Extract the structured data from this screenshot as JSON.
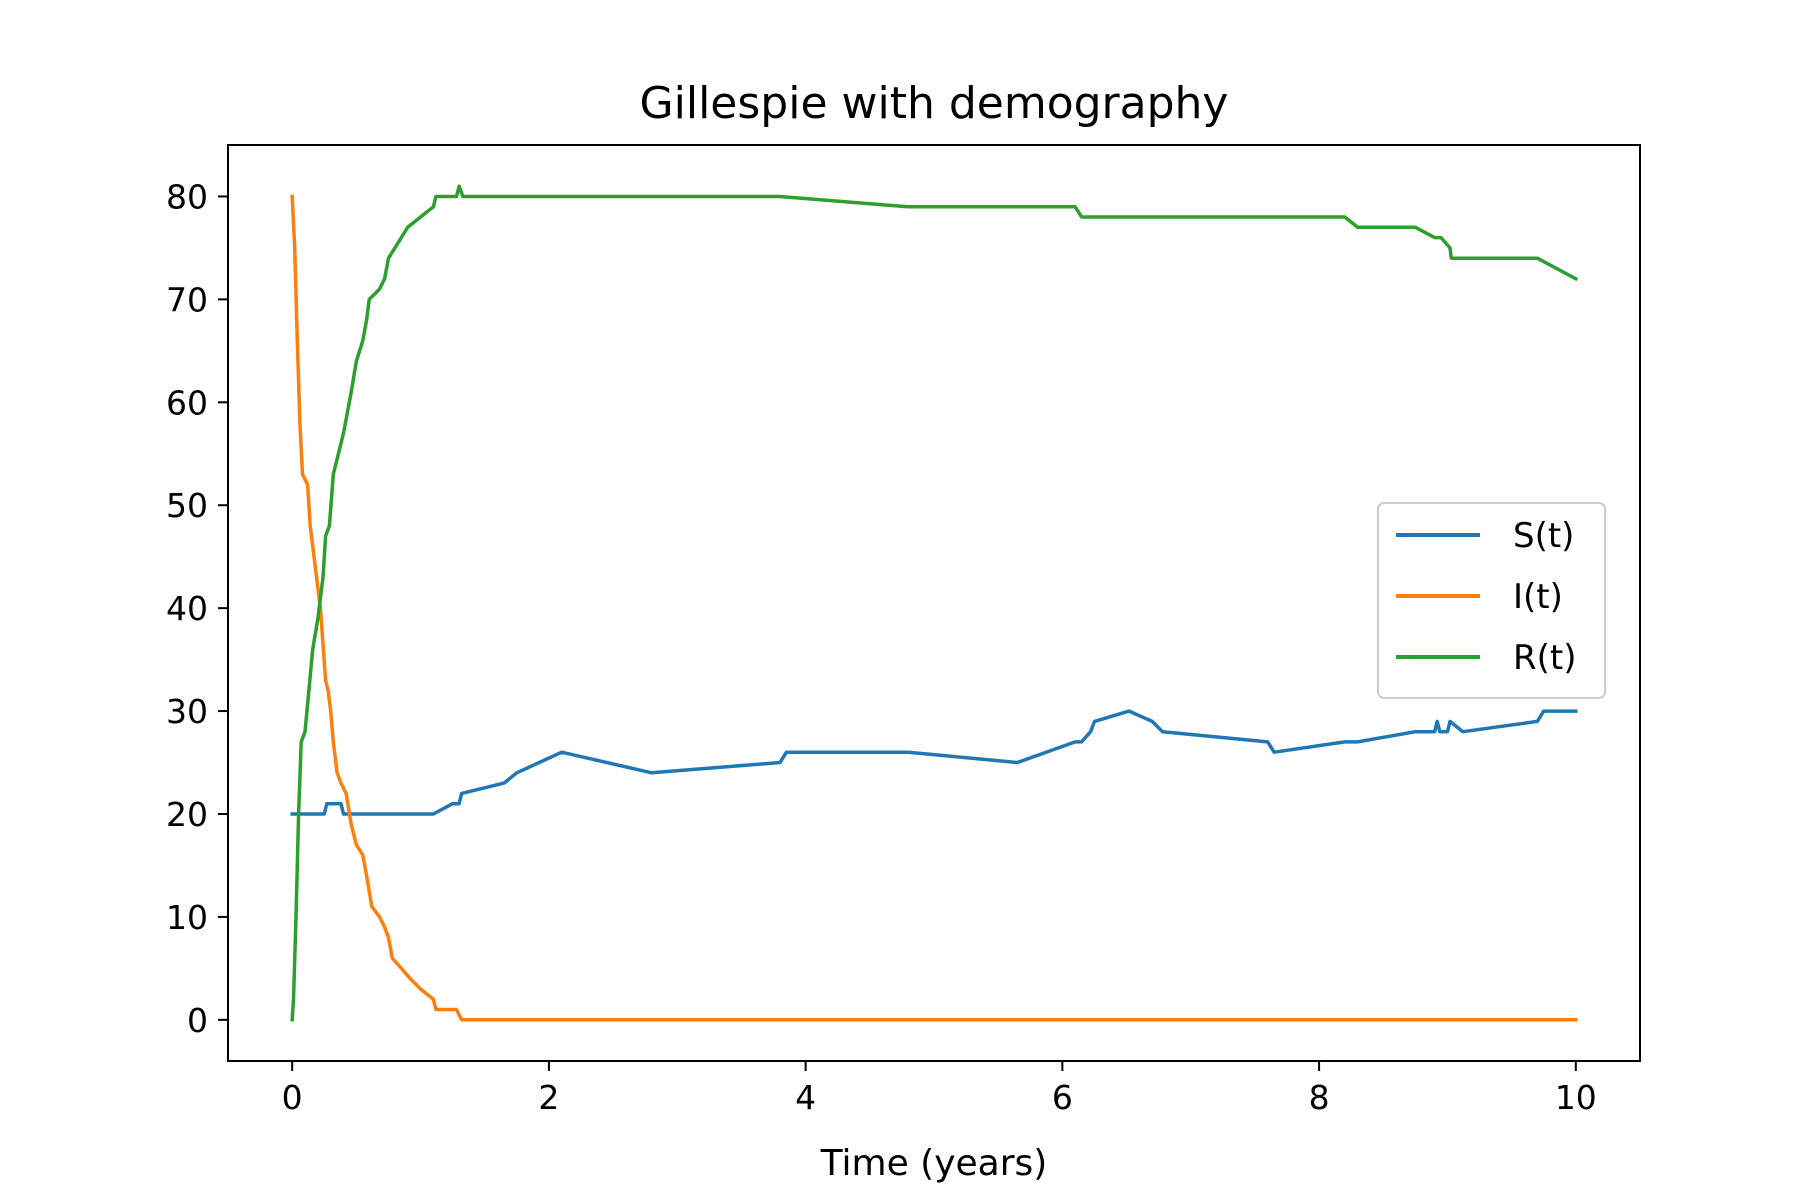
{
  "chart_data": {
    "type": "line",
    "title": "Gillespie with demography",
    "xlabel": "Time (years)",
    "ylabel": "",
    "xlim": [
      -0.5,
      10.5
    ],
    "ylim": [
      -4,
      85
    ],
    "xticks": [
      0,
      2,
      4,
      6,
      8,
      10
    ],
    "yticks": [
      0,
      10,
      20,
      30,
      40,
      50,
      60,
      70,
      80
    ],
    "grid": false,
    "legend_position": "center-right",
    "series": [
      {
        "name": "S(t)",
        "color": "#1f77b4",
        "points": [
          [
            0,
            20
          ],
          [
            0.25,
            20
          ],
          [
            0.27,
            21
          ],
          [
            0.38,
            21
          ],
          [
            0.4,
            20
          ],
          [
            1.1,
            20
          ],
          [
            1.25,
            21
          ],
          [
            1.3,
            21
          ],
          [
            1.32,
            22
          ],
          [
            1.65,
            23
          ],
          [
            1.75,
            24
          ],
          [
            2.1,
            26
          ],
          [
            2.8,
            24
          ],
          [
            3.8,
            25
          ],
          [
            3.85,
            26
          ],
          [
            4.8,
            26
          ],
          [
            5.65,
            25
          ],
          [
            6.1,
            27
          ],
          [
            6.15,
            27
          ],
          [
            6.22,
            28
          ],
          [
            6.25,
            29
          ],
          [
            6.52,
            30
          ],
          [
            6.7,
            29
          ],
          [
            6.78,
            28
          ],
          [
            7.6,
            27
          ],
          [
            7.65,
            26
          ],
          [
            8.2,
            27
          ],
          [
            8.3,
            27
          ],
          [
            8.75,
            28
          ],
          [
            8.9,
            28
          ],
          [
            8.92,
            29
          ],
          [
            8.94,
            28
          ],
          [
            9.0,
            28
          ],
          [
            9.02,
            29
          ],
          [
            9.12,
            28
          ],
          [
            9.7,
            29
          ],
          [
            9.75,
            30
          ],
          [
            10.0,
            30
          ]
        ]
      },
      {
        "name": "I(t)",
        "color": "#ff7f0e",
        "points": [
          [
            0,
            80
          ],
          [
            0.02,
            75
          ],
          [
            0.04,
            66
          ],
          [
            0.06,
            58
          ],
          [
            0.08,
            53
          ],
          [
            0.12,
            52
          ],
          [
            0.14,
            48
          ],
          [
            0.18,
            44
          ],
          [
            0.22,
            40
          ],
          [
            0.26,
            33
          ],
          [
            0.28,
            32
          ],
          [
            0.3,
            30
          ],
          [
            0.32,
            27
          ],
          [
            0.35,
            24
          ],
          [
            0.38,
            23
          ],
          [
            0.42,
            22
          ],
          [
            0.46,
            19
          ],
          [
            0.5,
            17
          ],
          [
            0.55,
            16
          ],
          [
            0.58,
            14
          ],
          [
            0.62,
            11
          ],
          [
            0.68,
            10
          ],
          [
            0.72,
            9
          ],
          [
            0.75,
            8
          ],
          [
            0.78,
            6
          ],
          [
            0.85,
            5
          ],
          [
            0.92,
            4
          ],
          [
            1.0,
            3
          ],
          [
            1.1,
            2
          ],
          [
            1.12,
            1
          ],
          [
            1.28,
            1
          ],
          [
            1.32,
            0
          ],
          [
            10.0,
            0
          ]
        ]
      },
      {
        "name": "R(t)",
        "color": "#2ca02c",
        "points": [
          [
            0,
            0
          ],
          [
            0.01,
            2
          ],
          [
            0.03,
            10
          ],
          [
            0.05,
            20
          ],
          [
            0.07,
            27
          ],
          [
            0.1,
            28
          ],
          [
            0.13,
            32
          ],
          [
            0.16,
            36
          ],
          [
            0.2,
            39
          ],
          [
            0.24,
            43
          ],
          [
            0.26,
            47
          ],
          [
            0.29,
            48
          ],
          [
            0.32,
            53
          ],
          [
            0.36,
            55
          ],
          [
            0.4,
            57
          ],
          [
            0.43,
            59
          ],
          [
            0.46,
            61
          ],
          [
            0.5,
            64
          ],
          [
            0.55,
            66
          ],
          [
            0.58,
            68
          ],
          [
            0.6,
            70
          ],
          [
            0.68,
            71
          ],
          [
            0.72,
            72
          ],
          [
            0.75,
            74
          ],
          [
            0.8,
            75
          ],
          [
            0.9,
            77
          ],
          [
            1.0,
            78
          ],
          [
            1.1,
            79
          ],
          [
            1.12,
            80
          ],
          [
            1.28,
            80
          ],
          [
            1.3,
            81
          ],
          [
            1.33,
            80
          ],
          [
            3.8,
            80
          ],
          [
            4.8,
            79
          ],
          [
            6.1,
            79
          ],
          [
            6.15,
            78
          ],
          [
            8.2,
            78
          ],
          [
            8.3,
            77
          ],
          [
            8.75,
            77
          ],
          [
            8.9,
            76
          ],
          [
            8.95,
            76
          ],
          [
            9.02,
            75
          ],
          [
            9.03,
            74
          ],
          [
            9.7,
            74
          ],
          [
            9.85,
            73
          ],
          [
            10.0,
            72
          ]
        ]
      }
    ]
  }
}
